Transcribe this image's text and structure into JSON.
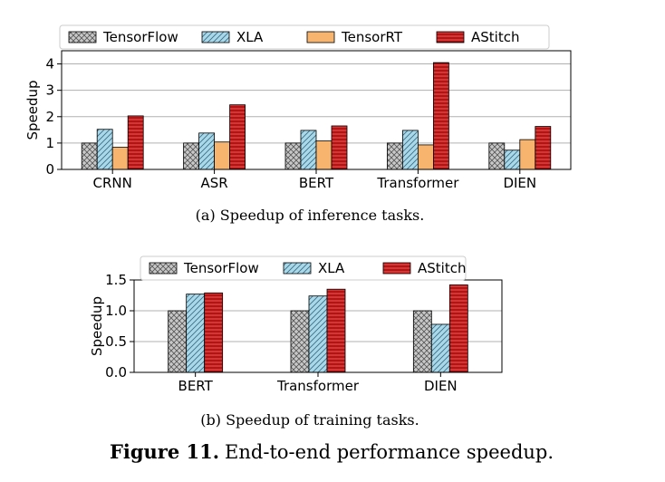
{
  "figure": {
    "label": "Figure 11.",
    "title": "End-to-end performance speedup."
  },
  "colors": {
    "TensorFlow": "#c8c8c8",
    "XLA": "#a9d8ea",
    "TensorRT": "#f7b46f",
    "AStitch": "#e03030"
  },
  "chart_data": [
    {
      "type": "bar",
      "caption": "(a) Speedup of inference tasks.",
      "ylabel": "Speedup",
      "ylim": [
        0,
        4.5
      ],
      "yticks": [
        "0",
        "1",
        "2",
        "3",
        "4"
      ],
      "grid": true,
      "legend": "top",
      "categories": [
        "CRNN",
        "ASR",
        "BERT",
        "Transformer",
        "DIEN"
      ],
      "series": [
        {
          "name": "TensorFlow",
          "values": [
            1.0,
            1.0,
            1.0,
            1.0,
            1.0
          ]
        },
        {
          "name": "XLA",
          "values": [
            1.52,
            1.38,
            1.48,
            1.48,
            0.73
          ]
        },
        {
          "name": "TensorRT",
          "values": [
            0.84,
            1.04,
            1.08,
            0.93,
            1.13
          ]
        },
        {
          "name": "AStitch",
          "values": [
            2.03,
            2.45,
            1.65,
            4.05,
            1.63
          ]
        }
      ]
    },
    {
      "type": "bar",
      "caption": "(b) Speedup of training tasks.",
      "ylabel": "Speedup",
      "ylim": [
        0,
        1.5
      ],
      "yticks": [
        "0.0",
        "0.5",
        "1.0",
        "1.5"
      ],
      "grid": true,
      "legend": "top",
      "categories": [
        "BERT",
        "Transformer",
        "DIEN"
      ],
      "series": [
        {
          "name": "TensorFlow",
          "values": [
            1.0,
            1.0,
            1.0
          ]
        },
        {
          "name": "XLA",
          "values": [
            1.27,
            1.24,
            0.78
          ]
        },
        {
          "name": "AStitch",
          "values": [
            1.29,
            1.35,
            1.42
          ]
        }
      ]
    }
  ]
}
